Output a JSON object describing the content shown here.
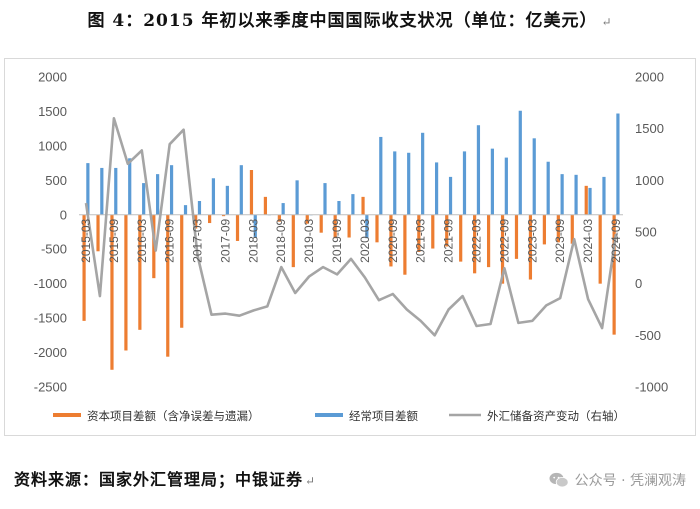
{
  "title": "图 4：2015 年初以来季度中国国际收支状况（单位：亿美元）",
  "title_mark": "↵",
  "source": "资料来源：国家外汇管理局；中银证券",
  "source_mark": "↵",
  "watermark": {
    "icon": "wechat-icon",
    "text": "公众号 · 凭澜观涛"
  },
  "colors": {
    "capital": "#ED7D31",
    "current": "#5B9BD5",
    "reserve": "#A5A5A5"
  },
  "chart_data": {
    "type": "bar",
    "categories": [
      "2015-03",
      "2015-06",
      "2015-09",
      "2015-12",
      "2016-03",
      "2016-06",
      "2016-09",
      "2016-12",
      "2017-03",
      "2017-06",
      "2017-09",
      "2017-12",
      "2018-03",
      "2018-06",
      "2018-09",
      "2018-12",
      "2019-03",
      "2019-06",
      "2019-09",
      "2019-12",
      "2020-03",
      "2020-06",
      "2020-09",
      "2020-12",
      "2021-03",
      "2021-06",
      "2021-09",
      "2021-12",
      "2022-03",
      "2022-06",
      "2022-09",
      "2022-12",
      "2023-03",
      "2023-06",
      "2023-09",
      "2023-12",
      "2024-03",
      "2024-06",
      "2024-09"
    ],
    "x_tick_labels": [
      "2015-03",
      "2015-09",
      "2016-03",
      "2016-09",
      "2017-03",
      "2017-09",
      "2018-03",
      "2018-09",
      "2019-03",
      "2019-09",
      "2020-03",
      "2020-09",
      "2021-03",
      "2021-09",
      "2022-03",
      "2022-09",
      "2023-03",
      "2023-09",
      "2024-03",
      "2024-09"
    ],
    "series": [
      {
        "name": "资本项目差额（含净误差与遗漏）",
        "type": "bar",
        "axis": "left",
        "values": [
          -1540,
          -530,
          -2250,
          -1970,
          -1670,
          -920,
          -2060,
          -1640,
          -200,
          -120,
          -20,
          -380,
          650,
          260,
          -100,
          -760,
          -130,
          -260,
          -340,
          -330,
          260,
          -400,
          -750,
          -870,
          -540,
          -490,
          -460,
          -680,
          -850,
          -760,
          -1000,
          -640,
          -940,
          -430,
          -400,
          -420,
          420,
          -1000,
          -1740
        ]
      },
      {
        "name": "经常项目差额",
        "type": "bar",
        "axis": "left",
        "values": [
          750,
          680,
          680,
          820,
          460,
          590,
          720,
          140,
          200,
          530,
          420,
          720,
          -330,
          0,
          170,
          500,
          0,
          460,
          200,
          300,
          -340,
          1130,
          920,
          900,
          1190,
          760,
          550,
          920,
          1300,
          960,
          830,
          1510,
          1110,
          770,
          590,
          580,
          390,
          550,
          1470
        ]
      },
      {
        "name": "外汇储备资产变动（右轴）",
        "type": "line",
        "axis": "right",
        "values": [
          780,
          -120,
          1600,
          1160,
          1290,
          320,
          1350,
          1490,
          270,
          -300,
          -290,
          -310,
          -260,
          -220,
          160,
          -90,
          70,
          160,
          90,
          240,
          60,
          -160,
          -100,
          -250,
          -360,
          -500,
          -250,
          -120,
          -410,
          -390,
          150,
          -380,
          -360,
          -210,
          -140,
          430,
          -150,
          -430,
          480
        ]
      }
    ],
    "y_left": {
      "min": -2500,
      "max": 2000,
      "step": 500,
      "ticks": [
        "2000",
        "1500",
        "1000",
        "500",
        "0",
        "-500",
        "-1000",
        "-1500",
        "-2000",
        "-2500"
      ]
    },
    "y_right": {
      "min": -1000,
      "max": 2000,
      "step": 500,
      "ticks": [
        "2000",
        "1500",
        "1000",
        "500",
        "0",
        "-500",
        "-1000"
      ]
    },
    "legend_position": "bottom",
    "grid": false
  }
}
